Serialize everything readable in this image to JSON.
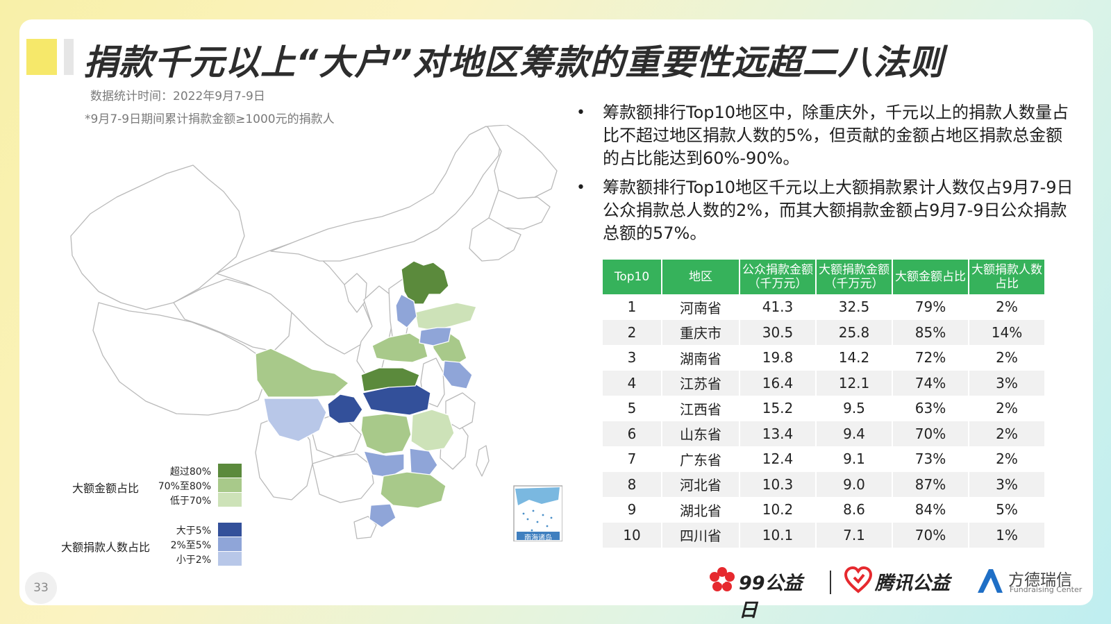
{
  "title": "捐款千元以上“大户”对地区筹款的重要性远超二八法则",
  "subtitle_time": "数据统计时间：2022年9月7-9日",
  "subtitle_note": "*9月7-9日期间累计捐款金额≥1000元的捐款人",
  "bullets": [
    "筹款额排行Top10地区中，除重庆外，千元以上的捐款人数量占比不超过地区捐款人数的5%，但贡献的金额占地区捐款总金额的占比能达到60%-90%。",
    "筹款额排行Top10地区千元以上大额捐款累计人数仅占9月7-9日公众捐款总人数的2%，而其大额捐款金额占9月7-9日公众捐款总额的57%。"
  ],
  "table": {
    "headers": [
      "Top10",
      "地区",
      "公众捐款金额（千万元）",
      "大额捐款金额（千万元）",
      "大额金额占比",
      "大额捐款人数占比"
    ],
    "rows": [
      [
        "1",
        "河南省",
        "41.3",
        "32.5",
        "79%",
        "2%"
      ],
      [
        "2",
        "重庆市",
        "30.5",
        "25.8",
        "85%",
        "14%"
      ],
      [
        "3",
        "湖南省",
        "19.8",
        "14.2",
        "72%",
        "2%"
      ],
      [
        "4",
        "江苏省",
        "16.4",
        "12.1",
        "74%",
        "3%"
      ],
      [
        "5",
        "江西省",
        "15.2",
        "9.5",
        "63%",
        "2%"
      ],
      [
        "6",
        "山东省",
        "13.4",
        "9.4",
        "70%",
        "2%"
      ],
      [
        "7",
        "广东省",
        "12.4",
        "9.1",
        "73%",
        "2%"
      ],
      [
        "8",
        "河北省",
        "10.3",
        "9.0",
        "87%",
        "3%"
      ],
      [
        "9",
        "湖北省",
        "10.2",
        "8.6",
        "84%",
        "5%"
      ],
      [
        "10",
        "四川省",
        "10.1",
        "7.1",
        "70%",
        "1%"
      ]
    ]
  },
  "legend": {
    "amount_title": "大额金额占比",
    "amount_items": [
      {
        "label": "超过80%",
        "color": "#5b8a3c"
      },
      {
        "label": "70%至80%",
        "color": "#a8c98a"
      },
      {
        "label": "低于70%",
        "color": "#cde2b8"
      }
    ],
    "people_title": "大额捐款人数占比",
    "people_items": [
      {
        "label": "大于5%",
        "color": "#33509a"
      },
      {
        "label": "2%至5%",
        "color": "#8fa5d8"
      },
      {
        "label": "小于2%",
        "color": "#b8c7e8"
      }
    ]
  },
  "map_inset_label": "南海诸岛",
  "page_number": "33",
  "logos": {
    "charity_day": "99公益日",
    "tencent": "腾讯公益",
    "fangde_cn": "方德瑞信",
    "fangde_en": "Fundraising Center"
  },
  "colors": {
    "table_header": "#36b25b",
    "dark_green": "#5b8a3c",
    "mid_green": "#a8c98a",
    "light_green": "#cde2b8",
    "dark_blue": "#33509a",
    "mid_blue": "#8fa5d8",
    "light_blue": "#b8c7e8",
    "logo_red": "#e6292e"
  }
}
